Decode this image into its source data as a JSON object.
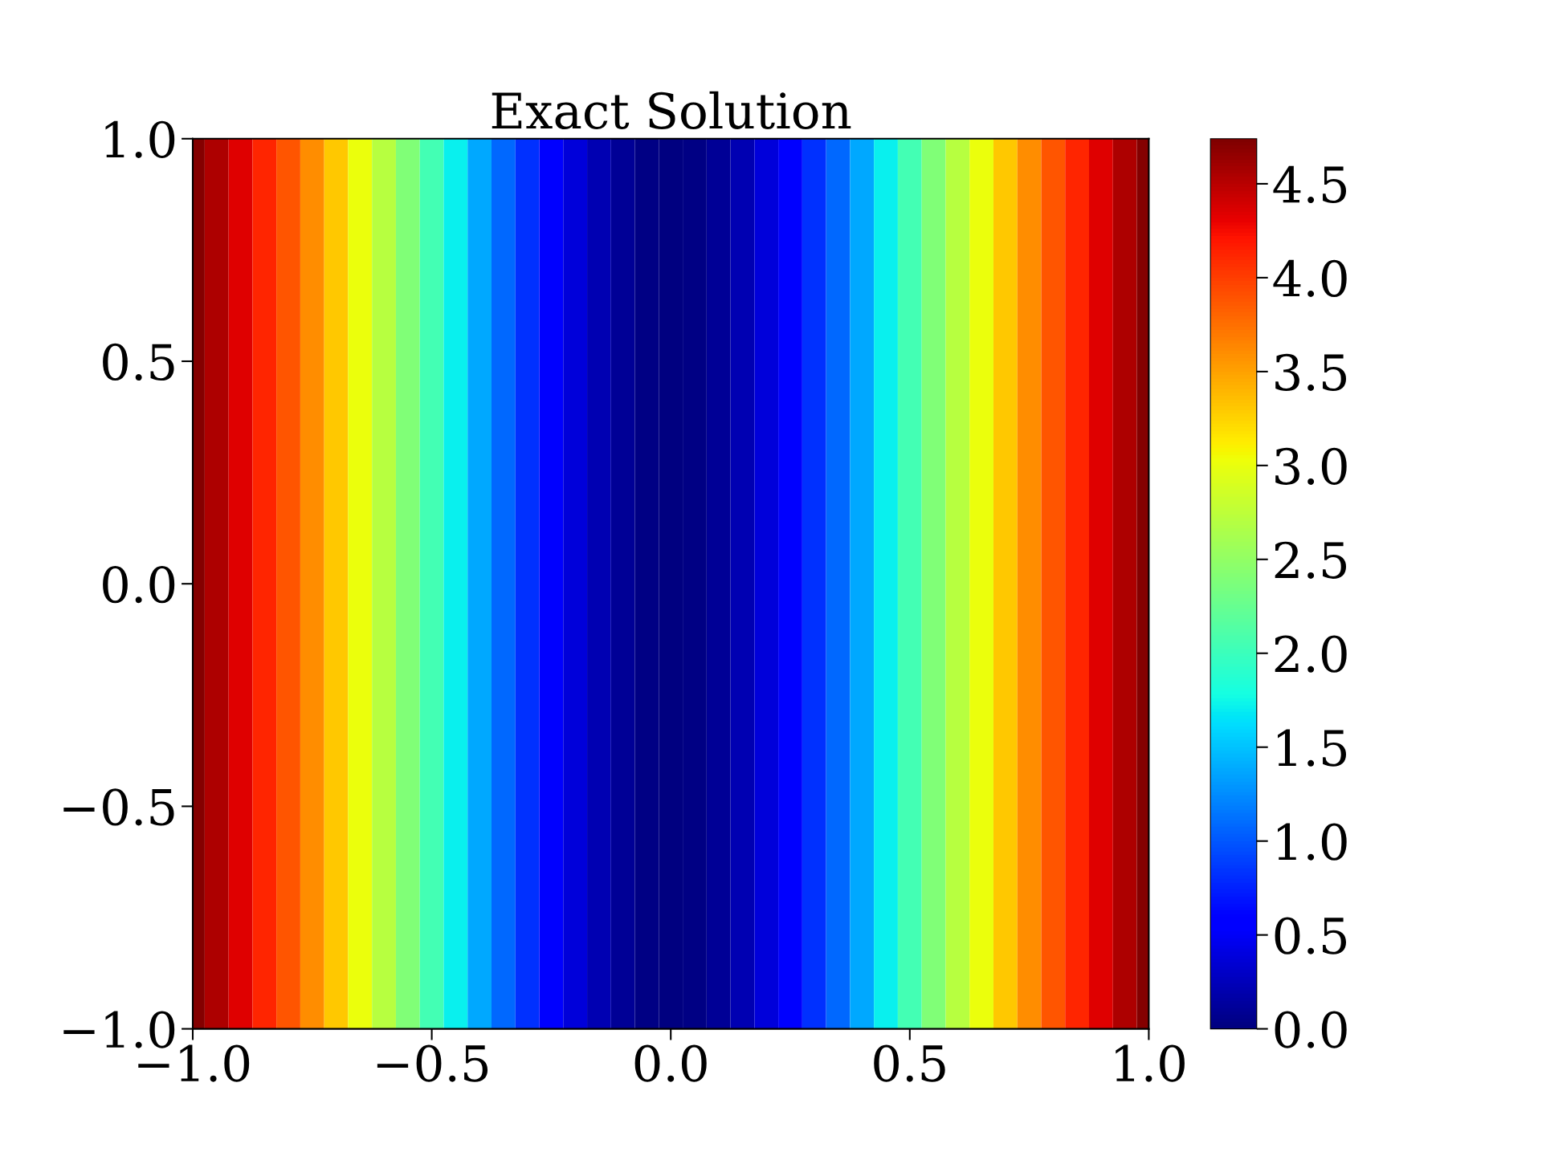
{
  "chart_data": {
    "type": "heatmap",
    "title": "Exact Solution",
    "x": [
      -1.0,
      -0.95,
      -0.9,
      -0.85,
      -0.8,
      -0.75,
      -0.7,
      -0.65,
      -0.6,
      -0.55,
      -0.5,
      -0.45,
      -0.4,
      -0.35,
      -0.3,
      -0.25,
      -0.2,
      -0.15,
      -0.1,
      -0.05,
      0.0,
      0.05,
      0.1,
      0.15,
      0.2,
      0.25,
      0.3,
      0.35,
      0.4,
      0.45,
      0.5,
      0.55,
      0.6,
      0.65,
      0.7,
      0.75,
      0.8,
      0.85,
      0.9,
      0.95,
      1.0
    ],
    "cells": [
      [
        4.72,
        4.55,
        4.35,
        4.12,
        3.88,
        3.6,
        3.3,
        3.0,
        2.72,
        2.4,
        2.05,
        1.72,
        1.38,
        1.08,
        0.82,
        0.58,
        0.38,
        0.22,
        0.1,
        0.03,
        0.0,
        0.03,
        0.1,
        0.22,
        0.38,
        0.58,
        0.82,
        1.08,
        1.38,
        1.72,
        2.05,
        2.4,
        2.72,
        3.0,
        3.3,
        3.6,
        3.88,
        4.12,
        4.35,
        4.55,
        4.72
      ]
    ],
    "xlim": [
      -1.0,
      1.0
    ],
    "ylim": [
      -1.0,
      1.0
    ],
    "xticks": [
      {
        "value": -1.0,
        "label": "−1.0"
      },
      {
        "value": -0.5,
        "label": "−0.5"
      },
      {
        "value": 0,
        "label": "0.0"
      },
      0.5,
      {
        "value": 1,
        "label": "1.0"
      }
    ],
    "yticks": [
      {
        "value": -1.0,
        "label": "−1.0"
      },
      {
        "value": -0.5,
        "label": "−0.5"
      },
      {
        "value": 0,
        "label": "0.0"
      },
      0.5,
      {
        "value": 1,
        "label": "1.0"
      }
    ],
    "clim": [
      0.0,
      4.74
    ],
    "cticks": [
      {
        "value": 0,
        "label": "0.0"
      },
      0.5,
      {
        "value": 1,
        "label": "1.0"
      },
      1.5,
      {
        "value": 2,
        "label": "2.0"
      },
      2.5,
      {
        "value": 3,
        "label": "3.0"
      },
      3.5,
      {
        "value": 4,
        "label": "4.0"
      },
      4.5
    ]
  }
}
